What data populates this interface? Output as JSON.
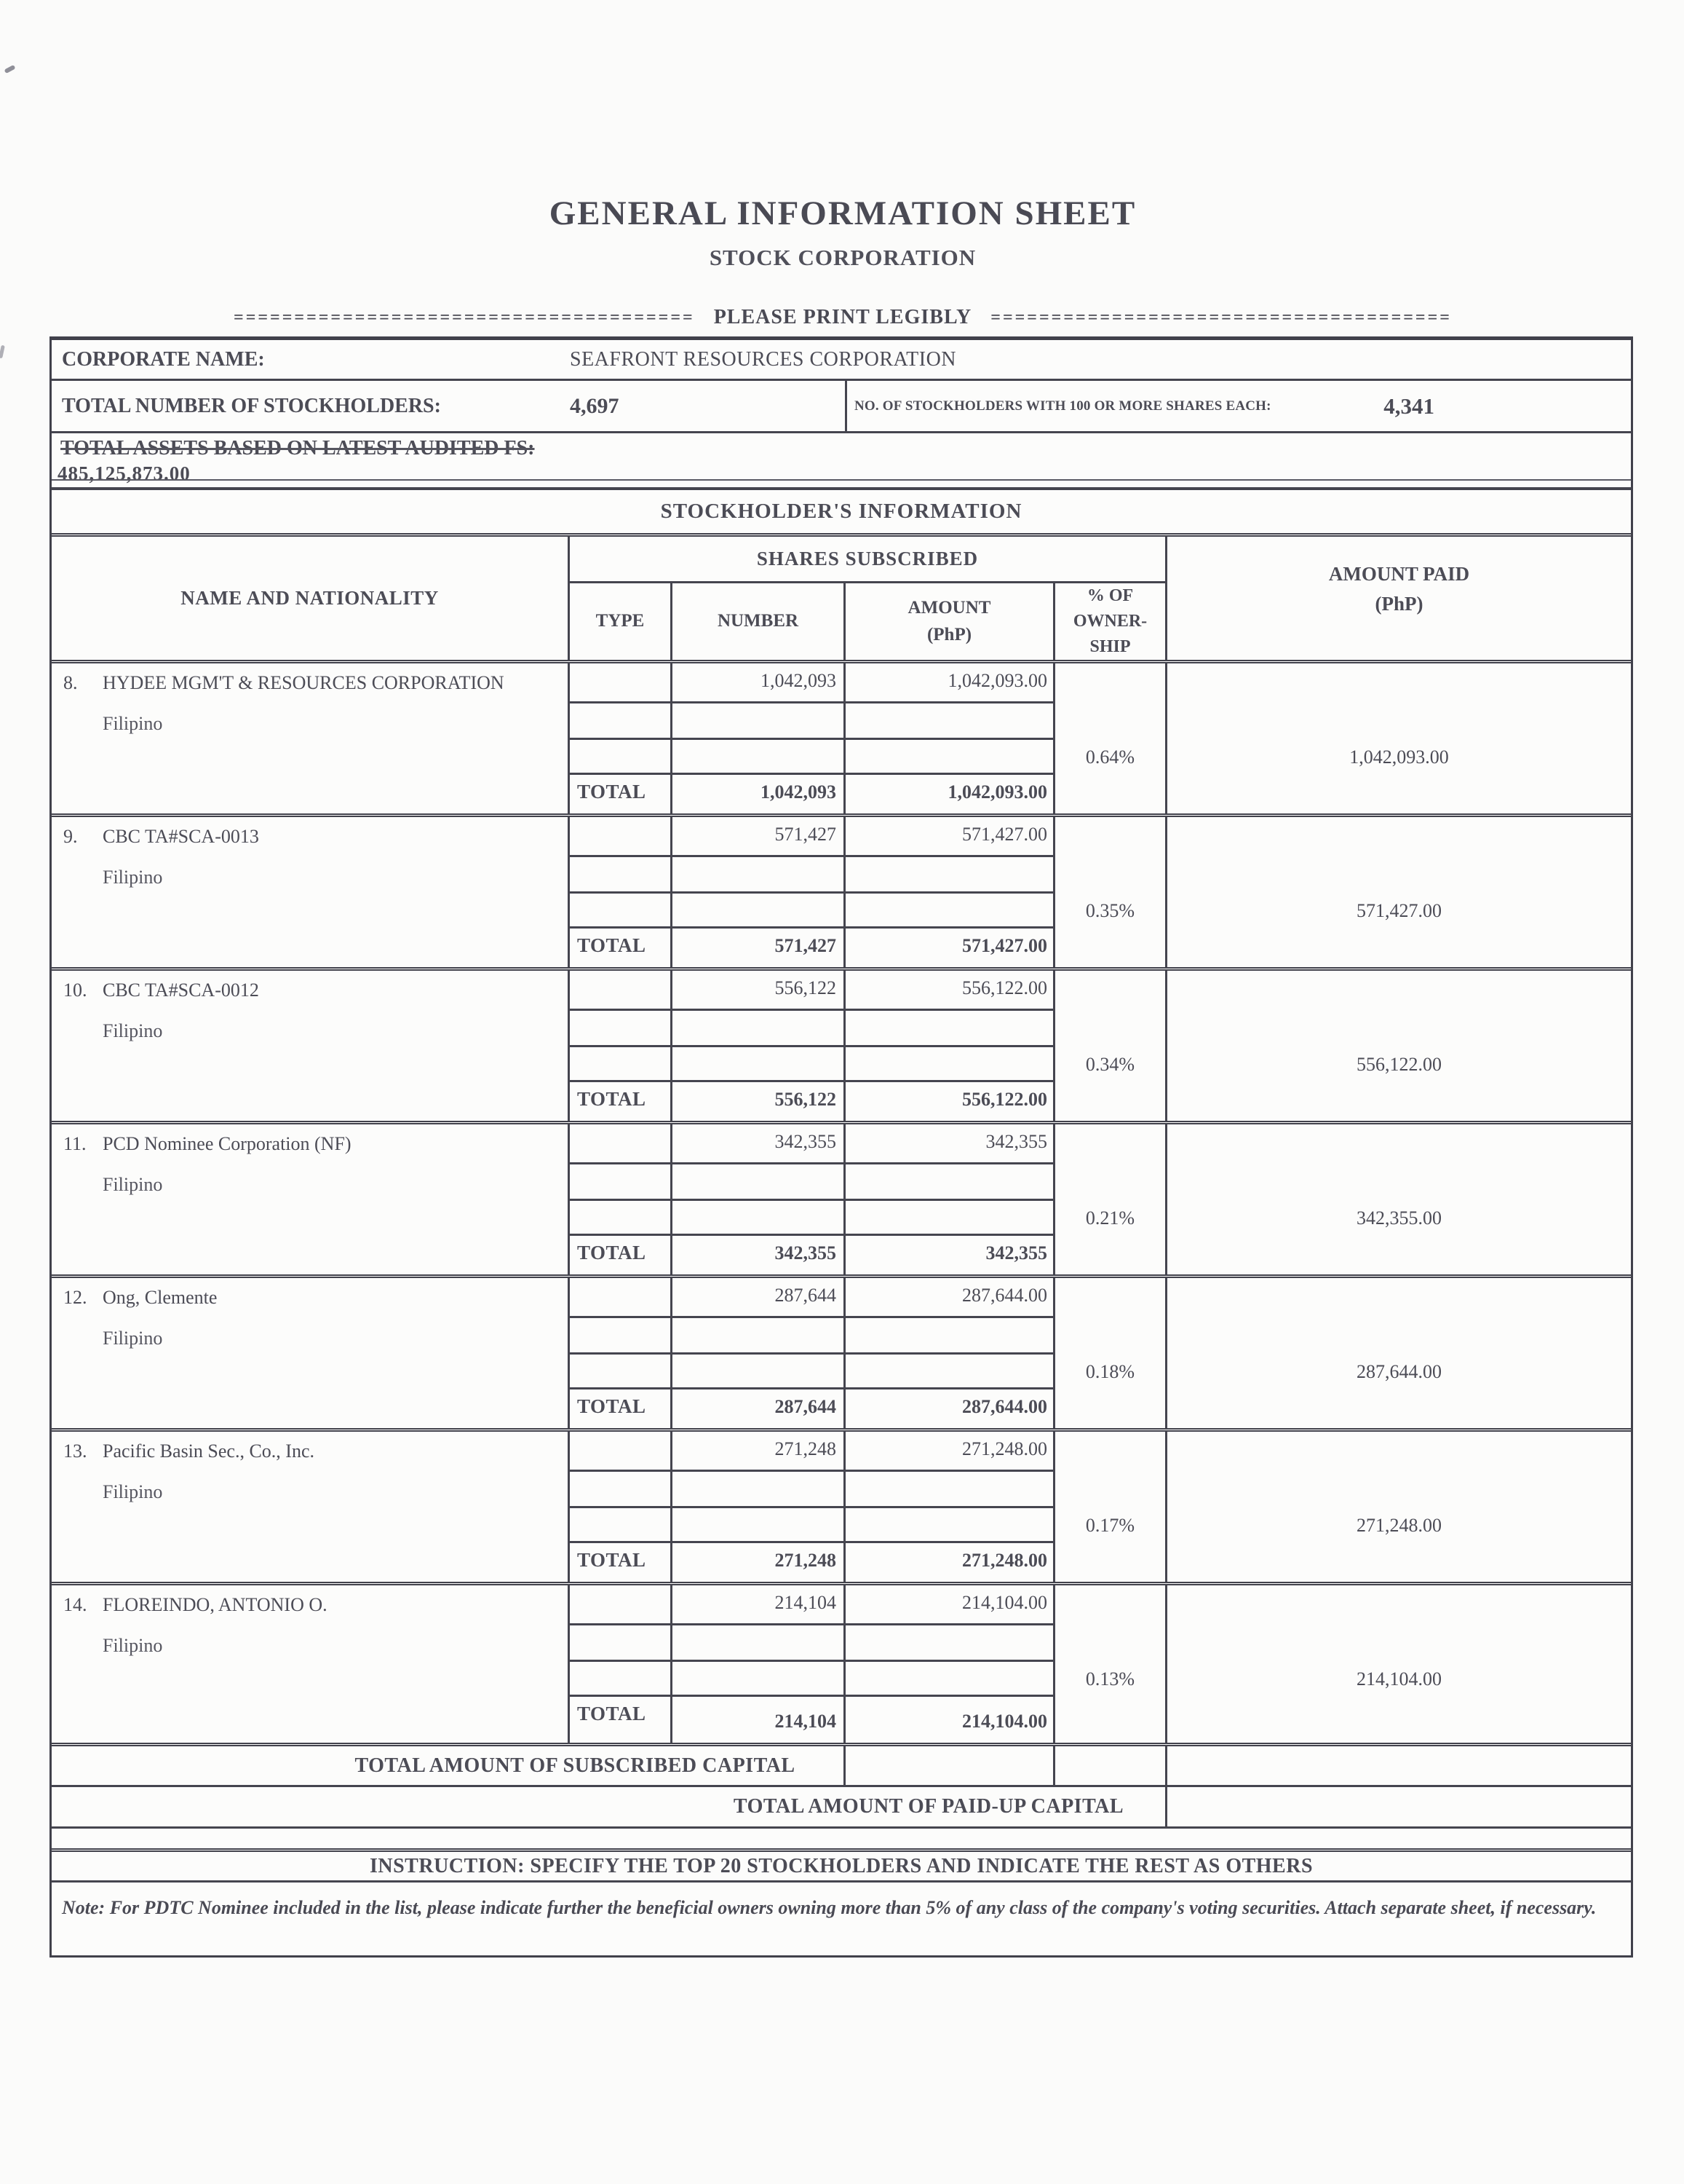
{
  "page": {
    "title": "GENERAL INFORMATION SHEET",
    "subtitle": "STOCK CORPORATION",
    "divider": {
      "eq": "======================================",
      "label": "PLEASE PRINT LEGIBLY"
    }
  },
  "company": {
    "corporate_name_label": "CORPORATE NAME:",
    "corporate_name": "SEAFRONT RESOURCES CORPORATION",
    "total_stockholders_label": "TOTAL NUMBER OF STOCKHOLDERS:",
    "total_stockholders": "4,697",
    "stockholders_100_label": "NO. OF STOCKHOLDERS WITH 100 OR MORE SHARES EACH:",
    "stockholders_100": "4,341",
    "total_assets_label": "TOTAL ASSETS BASED ON LATEST AUDITED FS:",
    "total_assets": "485,125,873.00"
  },
  "table": {
    "section_title": "STOCKHOLDER'S INFORMATION",
    "headers": {
      "name": "NAME AND NATIONALITY",
      "shares_subscribed": "SHARES SUBSCRIBED",
      "type": "TYPE",
      "number": "NUMBER",
      "amount_line1": "AMOUNT",
      "amount_line2": "(PhP)",
      "ownership_line1": "% OF",
      "ownership_line2": "OWNER-",
      "ownership_line3": "SHIP",
      "amount_paid_line1": "AMOUNT PAID",
      "amount_paid_line2": "(PhP)"
    },
    "total_label": "TOTAL",
    "rows": [
      {
        "no": "8.",
        "name": "HYDEE MGM'T & RESOURCES CORPORATION",
        "nationality": "Filipino",
        "number": "1,042,093",
        "amount": "1,042,093.00",
        "ownership": "0.64%",
        "amount_paid": "1,042,093.00",
        "total_number": "1,042,093",
        "total_amount": "1,042,093.00"
      },
      {
        "no": "9.",
        "name": "CBC TA#SCA-0013",
        "nationality": "Filipino",
        "number": "571,427",
        "amount": "571,427.00",
        "ownership": "0.35%",
        "amount_paid": "571,427.00",
        "total_number": "571,427",
        "total_amount": "571,427.00"
      },
      {
        "no": "10.",
        "name": "CBC TA#SCA-0012",
        "nationality": "Filipino",
        "number": "556,122",
        "amount": "556,122.00",
        "ownership": "0.34%",
        "amount_paid": "556,122.00",
        "total_number": "556,122",
        "total_amount": "556,122.00"
      },
      {
        "no": "11.",
        "name": "PCD Nominee Corporation (NF)",
        "nationality": "Filipino",
        "number": "342,355",
        "amount": "342,355",
        "ownership": "0.21%",
        "amount_paid": "342,355.00",
        "total_number": "342,355",
        "total_amount": "342,355"
      },
      {
        "no": "12.",
        "name": "Ong, Clemente",
        "nationality": "Filipino",
        "number": "287,644",
        "amount": "287,644.00",
        "ownership": "0.18%",
        "amount_paid": "287,644.00",
        "total_number": "287,644",
        "total_amount": "287,644.00"
      },
      {
        "no": "13.",
        "name": "Pacific Basin Sec., Co., Inc.",
        "nationality": "Filipino",
        "number": "271,248",
        "amount": "271,248.00",
        "ownership": "0.17%",
        "amount_paid": "271,248.00",
        "total_number": "271,248",
        "total_amount": "271,248.00"
      },
      {
        "no": "14.",
        "name": "FLOREINDO, ANTONIO O.",
        "nationality": "Filipino",
        "number": "214,104",
        "amount": "214,104.00",
        "ownership": "0.13%",
        "amount_paid": "214,104.00",
        "total_number": "214,104",
        "total_amount": "214,104.00"
      }
    ]
  },
  "footer": {
    "subscribed_capital_label": "TOTAL AMOUNT OF SUBSCRIBED CAPITAL",
    "paidup_capital_label": "TOTAL AMOUNT OF PAID-UP CAPITAL",
    "instruction": "INSTRUCTION: SPECIFY THE TOP 20 STOCKHOLDERS AND INDICATE THE REST AS OTHERS",
    "note": "Note:  For PDTC Nominee included in the list, please indicate further the beneficial owners owning more than 5% of any class of the company's voting securities.  Attach separate sheet, if necessary."
  }
}
